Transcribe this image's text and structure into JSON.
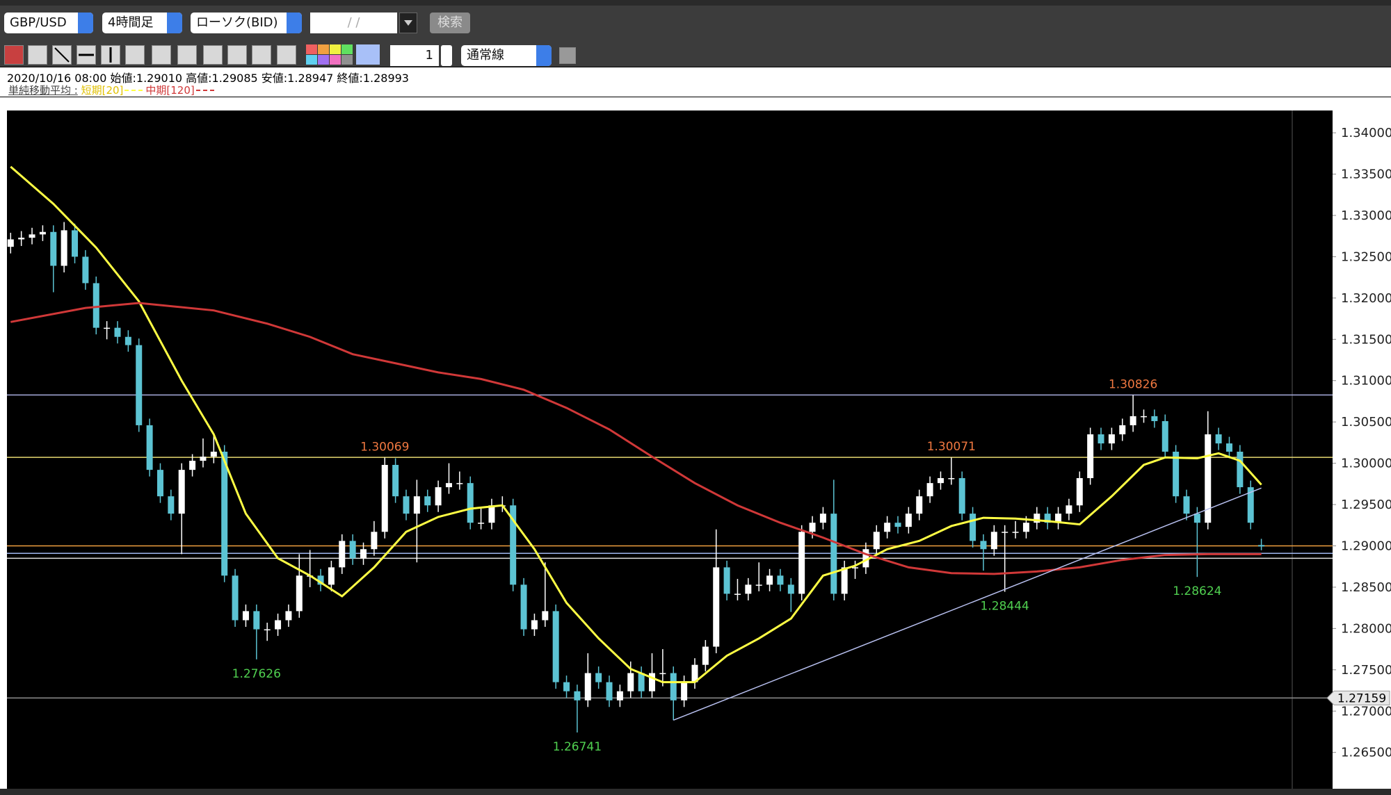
{
  "toolbar": {
    "symbol": "GBP/USD",
    "timeframe": "4時間足",
    "chart_type": "ローソク(BID)",
    "date": "/ /",
    "search": "検索",
    "quantity": "1",
    "line_type": "通常線"
  },
  "info": {
    "line": "2020/10/16 08:00 始値:1.29010 高値:1.29085 安値:1.28947 終値:1.28993",
    "ma_label": "単純移動平均 :"
  },
  "chart_data": {
    "type": "candlestick",
    "bull_color": "#ffffff",
    "bear_color": "#5cc3d3",
    "ylim": [
      1.2606,
      1.3427
    ],
    "yticks": [
      {
        "value": 1.265,
        "label": "1.26500"
      },
      {
        "value": 1.27,
        "label": "1.27000"
      },
      {
        "value": 1.275,
        "label": "1.27500"
      },
      {
        "value": 1.28,
        "label": "1.28000"
      },
      {
        "value": 1.285,
        "label": "1.28500"
      },
      {
        "value": 1.29,
        "label": "1.29000"
      },
      {
        "value": 1.295,
        "label": "1.29500"
      },
      {
        "value": 1.3,
        "label": "1.30000"
      },
      {
        "value": 1.305,
        "label": "1.30500"
      },
      {
        "value": 1.31,
        "label": "1.31000"
      },
      {
        "value": 1.315,
        "label": "1.31500"
      },
      {
        "value": 1.32,
        "label": "1.32000"
      },
      {
        "value": 1.325,
        "label": "1.32500"
      },
      {
        "value": 1.33,
        "label": "1.33000"
      },
      {
        "value": 1.335,
        "label": "1.33500"
      },
      {
        "value": 1.34,
        "label": "1.34000"
      }
    ],
    "candles": [
      [
        1.3262,
        1.3279,
        1.3254,
        1.3271
      ],
      [
        1.3271,
        1.3281,
        1.3263,
        1.3273
      ],
      [
        1.3273,
        1.3285,
        1.3265,
        1.3277
      ],
      [
        1.3277,
        1.3288,
        1.3269,
        1.328
      ],
      [
        1.328,
        1.3288,
        1.3207,
        1.3239
      ],
      [
        1.3239,
        1.3292,
        1.3231,
        1.3282
      ],
      [
        1.3282,
        1.329,
        1.3242,
        1.325
      ],
      [
        1.325,
        1.3258,
        1.321,
        1.3218
      ],
      [
        1.3218,
        1.3226,
        1.3156,
        1.3164
      ],
      [
        1.3164,
        1.3172,
        1.315,
        1.3164
      ],
      [
        1.3164,
        1.3172,
        1.3145,
        1.3153
      ],
      [
        1.3153,
        1.3161,
        1.3135,
        1.3143
      ],
      [
        1.3143,
        1.3151,
        1.3038,
        1.3046
      ],
      [
        1.3046,
        1.3054,
        1.2984,
        1.2992
      ],
      [
        1.2992,
        1.3,
        1.2952,
        1.296
      ],
      [
        1.296,
        1.2968,
        1.2931,
        1.2939
      ],
      [
        1.2939,
        1.3,
        1.289,
        1.2992
      ],
      [
        1.2992,
        1.3011,
        1.2984,
        1.3003
      ],
      [
        1.3003,
        1.303,
        1.2995,
        1.3008
      ],
      [
        1.3008,
        1.3035,
        1.3,
        1.3014
      ],
      [
        1.3014,
        1.3022,
        1.2856,
        1.2864
      ],
      [
        1.2864,
        1.2872,
        1.2802,
        1.281
      ],
      [
        1.281,
        1.2829,
        1.2802,
        1.2821
      ],
      [
        1.2821,
        1.2829,
        1.27626,
        1.2799
      ],
      [
        1.2799,
        1.2807,
        1.2785,
        1.2799
      ],
      [
        1.2799,
        1.2818,
        1.2791,
        1.281
      ],
      [
        1.281,
        1.2829,
        1.2802,
        1.2821
      ],
      [
        1.2821,
        1.289,
        1.2813,
        1.2864
      ],
      [
        1.2864,
        1.2895,
        1.285,
        1.2864
      ],
      [
        1.2864,
        1.2872,
        1.2845,
        1.2853
      ],
      [
        1.2853,
        1.2882,
        1.2845,
        1.2874
      ],
      [
        1.2874,
        1.2914,
        1.2866,
        1.2906
      ],
      [
        1.2906,
        1.2914,
        1.2877,
        1.2885
      ],
      [
        1.2885,
        1.2904,
        1.2877,
        1.2896
      ],
      [
        1.2896,
        1.293,
        1.2888,
        1.2917
      ],
      [
        1.2917,
        1.30069,
        1.2909,
        1.2998
      ],
      [
        1.2998,
        1.3006,
        1.2952,
        1.296
      ],
      [
        1.296,
        1.2968,
        1.2931,
        1.2939
      ],
      [
        1.2939,
        1.298,
        1.288,
        1.296
      ],
      [
        1.296,
        1.2968,
        1.2941,
        1.2949
      ],
      [
        1.2949,
        1.2979,
        1.2941,
        1.2971
      ],
      [
        1.2971,
        1.3,
        1.2963,
        1.2976
      ],
      [
        1.2976,
        1.299,
        1.2968,
        1.2976
      ],
      [
        1.2976,
        1.2984,
        1.292,
        1.2928
      ],
      [
        1.2928,
        1.2945,
        1.292,
        1.2928
      ],
      [
        1.2928,
        1.2957,
        1.292,
        1.2949
      ],
      [
        1.2949,
        1.296,
        1.2941,
        1.2949
      ],
      [
        1.2949,
        1.2957,
        1.2845,
        1.2853
      ],
      [
        1.2853,
        1.2861,
        1.2791,
        1.2799
      ],
      [
        1.2799,
        1.2818,
        1.2791,
        1.281
      ],
      [
        1.281,
        1.288,
        1.2802,
        1.2821
      ],
      [
        1.2821,
        1.2829,
        1.2727,
        1.2735
      ],
      [
        1.2735,
        1.2743,
        1.2716,
        1.2724
      ],
      [
        1.2724,
        1.2732,
        1.26741,
        1.2713
      ],
      [
        1.2713,
        1.277,
        1.2705,
        1.2746
      ],
      [
        1.2746,
        1.2754,
        1.2727,
        1.2735
      ],
      [
        1.2735,
        1.2743,
        1.2705,
        1.2713
      ],
      [
        1.2713,
        1.2732,
        1.2705,
        1.2724
      ],
      [
        1.2724,
        1.276,
        1.2716,
        1.2746
      ],
      [
        1.2746,
        1.2754,
        1.2716,
        1.2724
      ],
      [
        1.2724,
        1.277,
        1.2716,
        1.2746
      ],
      [
        1.2746,
        1.2775,
        1.273,
        1.2746
      ],
      [
        1.2746,
        1.2754,
        1.2689,
        1.2713
      ],
      [
        1.2713,
        1.2743,
        1.2705,
        1.2735
      ],
      [
        1.2735,
        1.2764,
        1.2727,
        1.2756
      ],
      [
        1.2756,
        1.2786,
        1.2748,
        1.2778
      ],
      [
        1.2778,
        1.292,
        1.277,
        1.2874
      ],
      [
        1.2874,
        1.2882,
        1.2834,
        1.2842
      ],
      [
        1.2842,
        1.286,
        1.2834,
        1.2842
      ],
      [
        1.2842,
        1.2861,
        1.2834,
        1.2853
      ],
      [
        1.2853,
        1.288,
        1.2845,
        1.2853
      ],
      [
        1.2853,
        1.2872,
        1.2845,
        1.2864
      ],
      [
        1.2864,
        1.2872,
        1.2845,
        1.2853
      ],
      [
        1.2853,
        1.2861,
        1.282,
        1.2842
      ],
      [
        1.2842,
        1.2925,
        1.2834,
        1.2917
      ],
      [
        1.2917,
        1.2936,
        1.2909,
        1.2928
      ],
      [
        1.2928,
        1.2947,
        1.292,
        1.2939
      ],
      [
        1.2939,
        1.298,
        1.2834,
        1.2842
      ],
      [
        1.2842,
        1.2882,
        1.2834,
        1.2874
      ],
      [
        1.2874,
        1.2882,
        1.286,
        1.2874
      ],
      [
        1.2874,
        1.2904,
        1.2866,
        1.2896
      ],
      [
        1.2896,
        1.2925,
        1.2888,
        1.2917
      ],
      [
        1.2917,
        1.2936,
        1.2909,
        1.2928
      ],
      [
        1.2928,
        1.2936,
        1.2915,
        1.2923
      ],
      [
        1.2923,
        1.2947,
        1.2915,
        1.2939
      ],
      [
        1.2939,
        1.2968,
        1.2931,
        1.296
      ],
      [
        1.296,
        1.2984,
        1.2952,
        1.2976
      ],
      [
        1.2976,
        1.299,
        1.2968,
        1.2982
      ],
      [
        1.2982,
        1.30071,
        1.2974,
        1.2982
      ],
      [
        1.2982,
        1.299,
        1.2931,
        1.2939
      ],
      [
        1.2939,
        1.2947,
        1.2898,
        1.2906
      ],
      [
        1.2906,
        1.2914,
        1.287,
        1.2896
      ],
      [
        1.2896,
        1.2925,
        1.2888,
        1.2917
      ],
      [
        1.2917,
        1.2925,
        1.28444,
        1.2917
      ],
      [
        1.2917,
        1.293,
        1.2909,
        1.2917
      ],
      [
        1.2917,
        1.2936,
        1.2909,
        1.2928
      ],
      [
        1.2928,
        1.2947,
        1.292,
        1.2939
      ],
      [
        1.2939,
        1.2947,
        1.292,
        1.2928
      ],
      [
        1.2928,
        1.2947,
        1.292,
        1.2939
      ],
      [
        1.2939,
        1.2957,
        1.2931,
        1.2949
      ],
      [
        1.2949,
        1.299,
        1.2941,
        1.2982
      ],
      [
        1.2982,
        1.3043,
        1.2974,
        1.3035
      ],
      [
        1.3035,
        1.3043,
        1.3016,
        1.3024
      ],
      [
        1.3024,
        1.3043,
        1.3016,
        1.3035
      ],
      [
        1.3035,
        1.3054,
        1.3027,
        1.3046
      ],
      [
        1.3046,
        1.30826,
        1.3038,
        1.3057
      ],
      [
        1.3057,
        1.3065,
        1.3049,
        1.3057
      ],
      [
        1.3057,
        1.3065,
        1.3043,
        1.3051
      ],
      [
        1.3051,
        1.3059,
        1.3006,
        1.3014
      ],
      [
        1.3014,
        1.3022,
        1.2952,
        1.296
      ],
      [
        1.296,
        1.2968,
        1.2931,
        1.2939
      ],
      [
        1.2939,
        1.2947,
        1.28624,
        1.2928
      ],
      [
        1.2928,
        1.3063,
        1.292,
        1.3035
      ],
      [
        1.3035,
        1.3043,
        1.3016,
        1.3024
      ],
      [
        1.3024,
        1.3032,
        1.3006,
        1.3014
      ],
      [
        1.3014,
        1.3022,
        1.2963,
        1.2971
      ],
      [
        1.2971,
        1.2979,
        1.292,
        1.2928
      ],
      [
        1.2901,
        1.29085,
        1.28947,
        1.28993
      ]
    ],
    "series": [
      {
        "name": "短期[20]",
        "color": "#ffff44",
        "x": [
          0,
          4,
          8,
          12,
          16,
          19,
          22,
          25,
          28,
          31,
          34,
          37,
          40,
          43,
          46,
          49,
          52,
          55,
          58,
          61,
          64,
          67,
          70,
          73,
          76,
          79,
          82,
          85,
          88,
          91,
          94,
          97,
          100,
          103,
          106,
          108,
          111,
          113,
          115,
          117
        ],
        "values": [
          1.3359,
          1.3314,
          1.3261,
          1.3196,
          1.31,
          1.3035,
          1.2939,
          1.2885,
          1.2864,
          1.2839,
          1.2874,
          1.2917,
          1.2935,
          1.2945,
          1.2949,
          1.2896,
          1.2831,
          1.2788,
          1.2751,
          1.2735,
          1.2735,
          1.2767,
          1.2788,
          1.2812,
          1.2864,
          1.2876,
          1.2896,
          1.2906,
          1.2924,
          1.2934,
          1.2933,
          1.293,
          1.2926,
          1.296,
          1.2998,
          1.3007,
          1.3006,
          1.3012,
          1.3003,
          1.2974
        ]
      },
      {
        "name": "中期[120]",
        "color": "#d03838",
        "x": [
          0,
          7,
          12,
          19,
          24,
          28,
          32,
          36,
          40,
          44,
          48,
          52,
          56,
          60,
          64,
          68,
          72,
          76,
          80,
          84,
          88,
          92,
          96,
          100,
          104,
          108,
          112,
          117
        ],
        "values": [
          1.3171,
          1.3188,
          1.3194,
          1.3185,
          1.3169,
          1.3153,
          1.3132,
          1.3121,
          1.311,
          1.3102,
          1.3089,
          1.3067,
          1.3041,
          1.3008,
          1.2976,
          1.2949,
          1.2928,
          1.291,
          1.289,
          1.2874,
          1.2867,
          1.2866,
          1.2869,
          1.2874,
          1.2883,
          1.2889,
          1.289,
          1.289
        ]
      }
    ],
    "hlines": [
      {
        "value": 1.30826,
        "color": "#a9aee0"
      },
      {
        "value": 1.30071,
        "color": "#e8d870"
      },
      {
        "value": 1.29,
        "color": "#f0a040"
      },
      {
        "value": 1.2891,
        "color": "#a0b8f0"
      },
      {
        "value": 1.2885,
        "color": "#e0e0e0"
      },
      {
        "value": 1.27159,
        "color": "#909090"
      }
    ],
    "trendline": {
      "x": [
        62,
        117
      ],
      "values": [
        1.2689,
        1.297
      ],
      "color": "#b8c0f0"
    },
    "annotations": [
      {
        "x": 35,
        "value": 1.30069,
        "color": "#f07840",
        "placement": "above"
      },
      {
        "x": 88,
        "value": 1.30071,
        "color": "#f07840",
        "placement": "above"
      },
      {
        "x": 105,
        "value": 1.30826,
        "color": "#f07840",
        "placement": "above"
      },
      {
        "x": 23,
        "value": 1.27626,
        "color": "#50d050",
        "placement": "below"
      },
      {
        "x": 53,
        "value": 1.26741,
        "color": "#50d050",
        "placement": "below"
      },
      {
        "x": 93,
        "value": 1.28444,
        "color": "#50d050",
        "placement": "below"
      },
      {
        "x": 111,
        "value": 1.28624,
        "color": "#50d050",
        "placement": "below"
      }
    ],
    "current_price": 1.27159
  }
}
